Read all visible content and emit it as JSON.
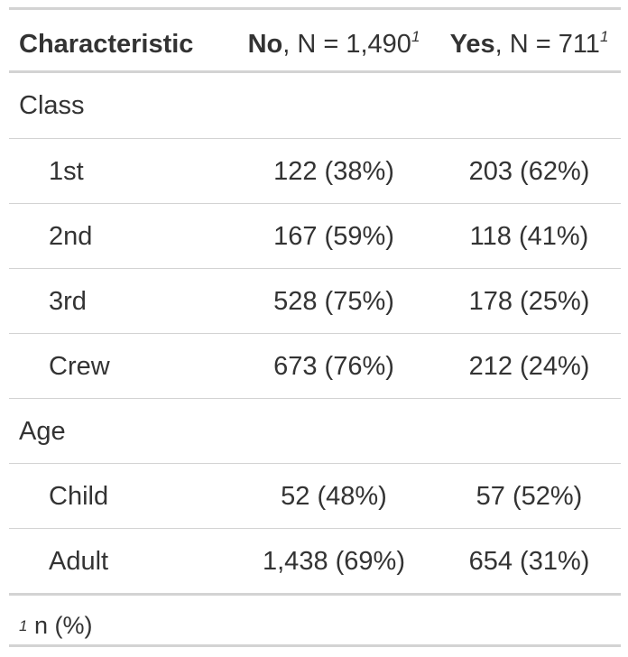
{
  "table": {
    "header": {
      "characteristic": "Characteristic",
      "col1_bold": "No",
      "col1_rest": ", N = 1,490",
      "col2_bold": "Yes",
      "col2_rest": ", N = 711",
      "footnote_mark": "1"
    },
    "groups": [
      {
        "label": "Class",
        "rows": [
          {
            "label": "1st",
            "no": "122 (38%)",
            "yes": "203 (62%)"
          },
          {
            "label": "2nd",
            "no": "167 (59%)",
            "yes": "118 (41%)"
          },
          {
            "label": "3rd",
            "no": "528 (75%)",
            "yes": "178 (25%)"
          },
          {
            "label": "Crew",
            "no": "673 (76%)",
            "yes": "212 (24%)"
          }
        ]
      },
      {
        "label": "Age",
        "rows": [
          {
            "label": "Child",
            "no": "52 (48%)",
            "yes": "57 (52%)"
          },
          {
            "label": "Adult",
            "no": "1,438 (69%)",
            "yes": "654 (31%)"
          }
        ]
      }
    ],
    "footnote": {
      "mark": "1",
      "text": "n (%)"
    }
  }
}
